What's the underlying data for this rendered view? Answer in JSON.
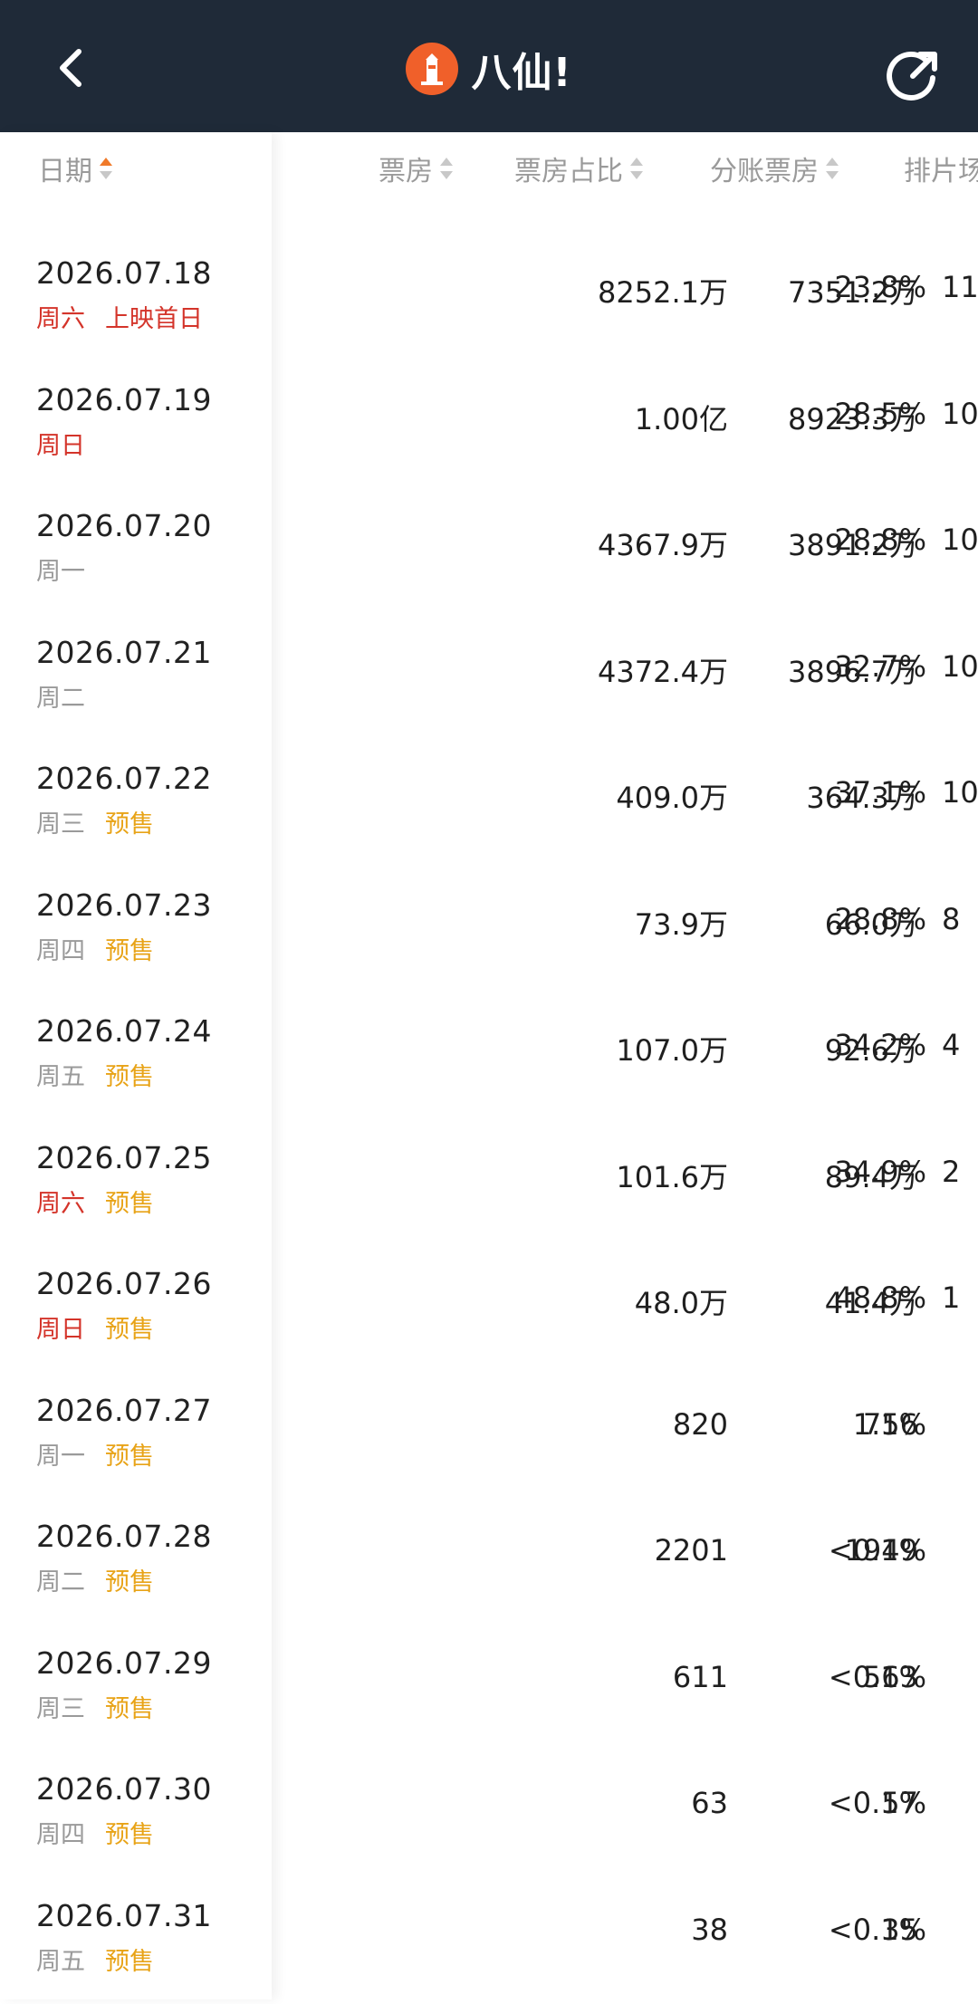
{
  "header": {
    "title": "八仙!"
  },
  "columns": [
    {
      "label": "日期",
      "sort_active": true
    },
    {
      "label": "票房",
      "sort_active": false
    },
    {
      "label": "票房占比",
      "sort_active": false
    },
    {
      "label": "分账票房",
      "sort_active": false
    },
    {
      "label": "排片场",
      "sort_active": false
    }
  ],
  "rows": [
    {
      "date": "2026.07.18",
      "weekday": "周六",
      "weekend": true,
      "tag": "上映首日",
      "tag_type": "first",
      "box": "8252.1万",
      "share": "23.8%",
      "split": "7351.2万",
      "shows": "11("
    },
    {
      "date": "2026.07.19",
      "weekday": "周日",
      "weekend": true,
      "tag": "",
      "tag_type": "",
      "box": "1.00亿",
      "share": "28.5%",
      "split": "8923.3万",
      "shows": "10"
    },
    {
      "date": "2026.07.20",
      "weekday": "周一",
      "weekend": false,
      "tag": "",
      "tag_type": "",
      "box": "4367.9万",
      "share": "28.8%",
      "split": "3891.2万",
      "shows": "10"
    },
    {
      "date": "2026.07.21",
      "weekday": "周二",
      "weekend": false,
      "tag": "",
      "tag_type": "",
      "box": "4372.4万",
      "share": "32.7%",
      "split": "3896.7万",
      "shows": "10"
    },
    {
      "date": "2026.07.22",
      "weekday": "周三",
      "weekend": false,
      "tag": "预售",
      "tag_type": "presale",
      "box": "409.0万",
      "share": "37.1%",
      "split": "364.3万",
      "shows": "10"
    },
    {
      "date": "2026.07.23",
      "weekday": "周四",
      "weekend": false,
      "tag": "预售",
      "tag_type": "presale",
      "box": "73.9万",
      "share": "28.8%",
      "split": "66.0万",
      "shows": "8"
    },
    {
      "date": "2026.07.24",
      "weekday": "周五",
      "weekend": false,
      "tag": "预售",
      "tag_type": "presale",
      "box": "107.0万",
      "share": "34.2%",
      "split": "92.6万",
      "shows": "4"
    },
    {
      "date": "2026.07.25",
      "weekday": "周六",
      "weekend": true,
      "tag": "预售",
      "tag_type": "presale",
      "box": "101.6万",
      "share": "34.9%",
      "split": "89.4万",
      "shows": "2"
    },
    {
      "date": "2026.07.26",
      "weekday": "周日",
      "weekend": true,
      "tag": "预售",
      "tag_type": "presale",
      "box": "48.0万",
      "share": "48.8%",
      "split": "41.4万",
      "shows": "1"
    },
    {
      "date": "2026.07.27",
      "weekday": "周一",
      "weekend": false,
      "tag": "预售",
      "tag_type": "presale",
      "box": "820",
      "share": "1.1%",
      "split": "756",
      "shows": ""
    },
    {
      "date": "2026.07.28",
      "weekday": "周二",
      "weekend": false,
      "tag": "预售",
      "tag_type": "presale",
      "box": "2201",
      "share": "<0.1%",
      "split": "1949",
      "shows": ""
    },
    {
      "date": "2026.07.29",
      "weekday": "周三",
      "weekend": false,
      "tag": "预售",
      "tag_type": "presale",
      "box": "611",
      "share": "<0.1%",
      "split": "563",
      "shows": ""
    },
    {
      "date": "2026.07.30",
      "weekday": "周四",
      "weekend": false,
      "tag": "预售",
      "tag_type": "presale",
      "box": "63",
      "share": "<0.1%",
      "split": "57",
      "shows": ""
    },
    {
      "date": "2026.07.31",
      "weekday": "周五",
      "weekend": false,
      "tag": "预售",
      "tag_type": "presale",
      "box": "38",
      "share": "<0.1%",
      "split": "35",
      "shows": ""
    }
  ],
  "colors": {
    "topbar": "#1f2a38",
    "weekend": "#d4342a",
    "presale": "#e8a317",
    "sort_active": "#f07a2a"
  }
}
